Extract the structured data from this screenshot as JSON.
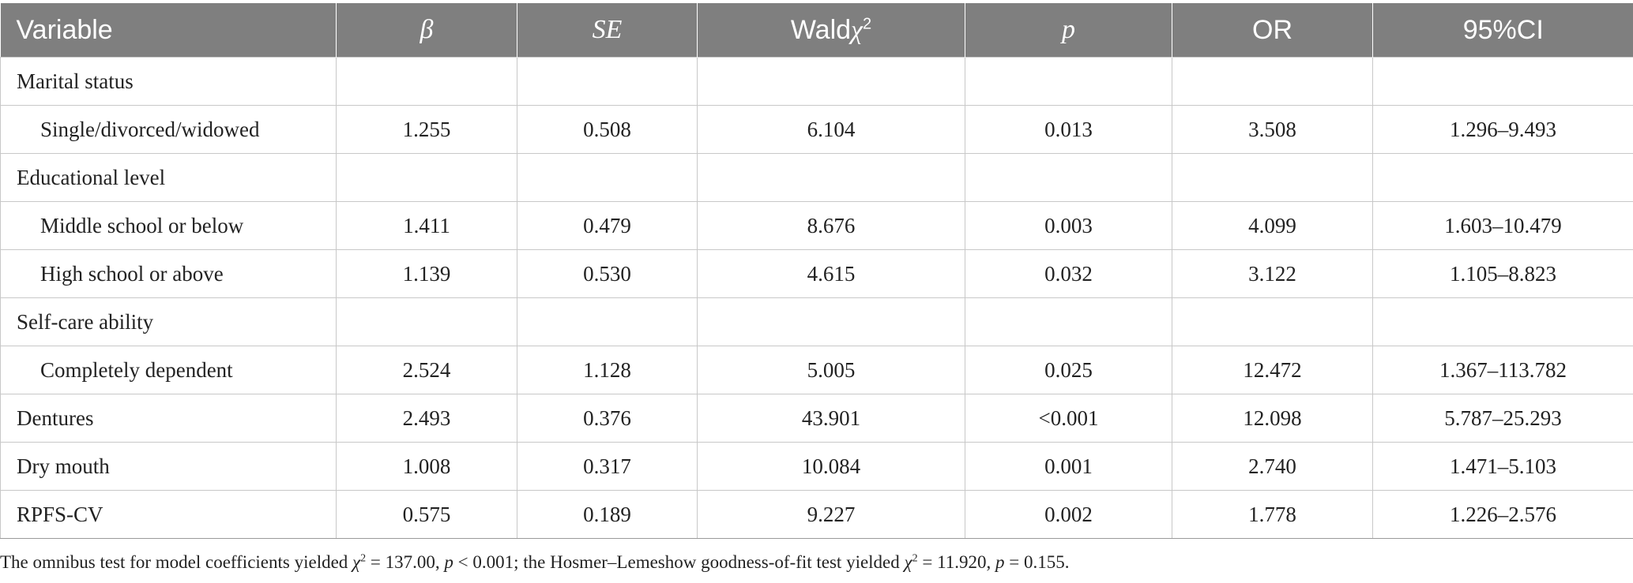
{
  "table": {
    "headers": {
      "variable": "Variable",
      "beta": "β",
      "se": "SE",
      "wald_prefix": "Wald",
      "wald_chi": "χ",
      "wald_sup": "2",
      "p": "p",
      "or": "OR",
      "ci": "95%CI"
    },
    "rows": [
      {
        "variable": "Marital status",
        "beta": "",
        "se": "",
        "wald": "",
        "p": "",
        "or": "",
        "ci": ""
      },
      {
        "variable": "Single/divorced/widowed",
        "beta": "1.255",
        "se": "0.508",
        "wald": "6.104",
        "p": "0.013",
        "or": "3.508",
        "ci": "1.296–9.493"
      },
      {
        "variable": "Educational level",
        "beta": "",
        "se": "",
        "wald": "",
        "p": "",
        "or": "",
        "ci": ""
      },
      {
        "variable": "Middle school or below",
        "beta": "1.411",
        "se": "0.479",
        "wald": "8.676",
        "p": "0.003",
        "or": "4.099",
        "ci": "1.603–10.479"
      },
      {
        "variable": "High school or above",
        "beta": "1.139",
        "se": "0.530",
        "wald": "4.615",
        "p": "0.032",
        "or": "3.122",
        "ci": "1.105–8.823"
      },
      {
        "variable": "Self-care ability",
        "beta": "",
        "se": "",
        "wald": "",
        "p": "",
        "or": "",
        "ci": ""
      },
      {
        "variable": "Completely dependent",
        "beta": "2.524",
        "se": "1.128",
        "wald": "5.005",
        "p": "0.025",
        "or": "12.472",
        "ci": "1.367–113.782"
      },
      {
        "variable": "Dentures",
        "beta": "2.493",
        "se": "0.376",
        "wald": "43.901",
        "p": "<0.001",
        "or": "12.098",
        "ci": "5.787–25.293"
      },
      {
        "variable": "Dry mouth",
        "beta": "1.008",
        "se": "0.317",
        "wald": "10.084",
        "p": "0.001",
        "or": "2.740",
        "ci": "1.471–5.103"
      },
      {
        "variable": "RPFS-CV",
        "beta": "0.575",
        "se": "0.189",
        "wald": "9.227",
        "p": "0.002",
        "or": "1.778",
        "ci": "1.226–2.576"
      }
    ]
  },
  "footnote": {
    "t1": "The omnibus test for model coefficients yielded ",
    "chi1": "χ",
    "sup1": "2",
    "t2": " = 137.00, ",
    "p1": "p",
    "t3": " < 0.001; the Hosmer–Lemeshow goodness-of-fit test yielded ",
    "chi2": "χ",
    "sup2": "2",
    "t4": " = 11.920, ",
    "p2": "p",
    "t5": " = 0.155."
  }
}
